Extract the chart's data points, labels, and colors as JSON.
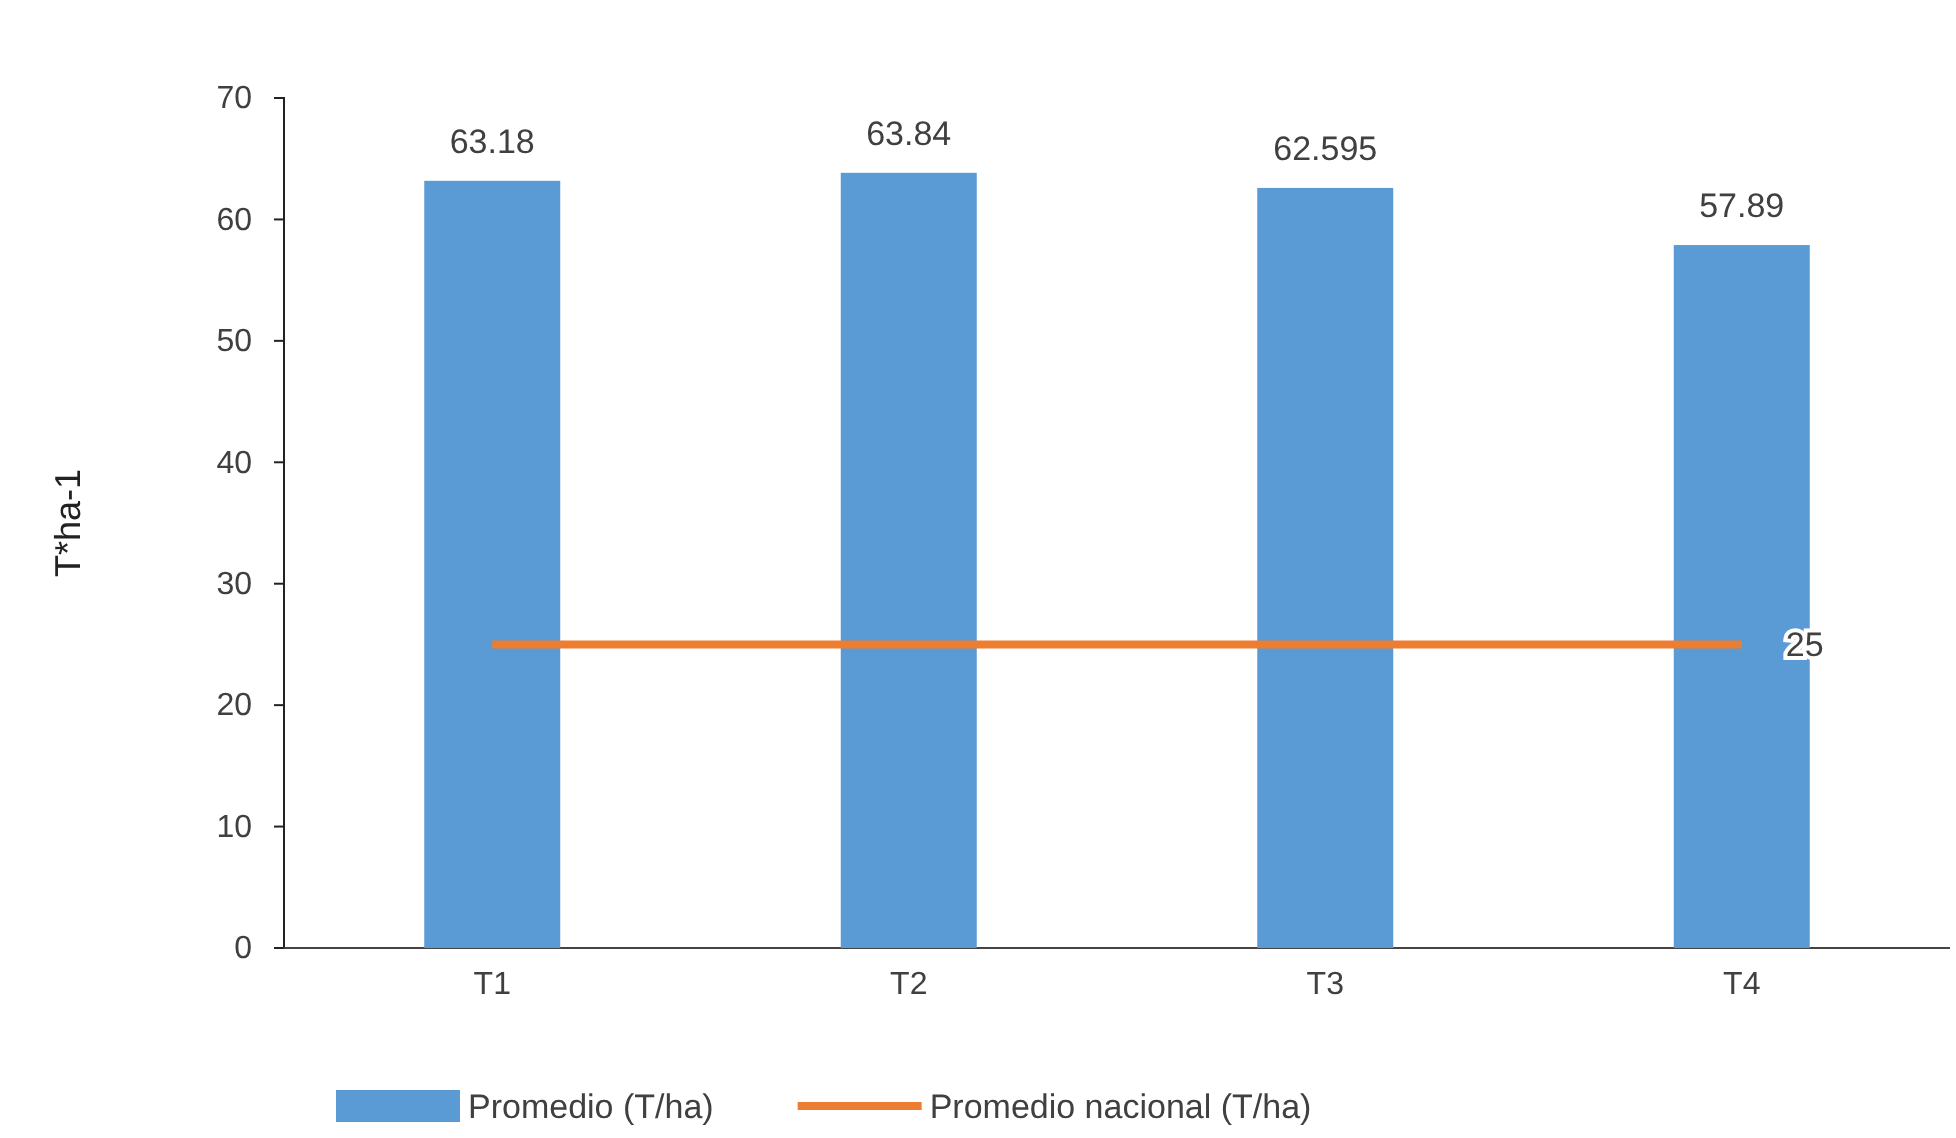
{
  "chart_data": {
    "type": "bar",
    "ylabel": "T*ha-1",
    "categories": [
      "T1",
      "T2",
      "T3",
      "T4"
    ],
    "series": [
      {
        "name": "Promedio (T/ha)",
        "color": "#5b9bd5",
        "values": [
          63.18,
          63.84,
          62.595,
          57.89
        ],
        "value_labels": [
          "63.18",
          "63.84",
          "62.595",
          "57.89"
        ]
      },
      {
        "name": "Promedio nacional (T/ha)",
        "type": "line",
        "color": "#ed7d31",
        "values": [
          25,
          25,
          25,
          25
        ],
        "value_labels": [
          null,
          null,
          null,
          "25"
        ]
      }
    ],
    "ylim": [
      0,
      70
    ],
    "yticks": [
      0,
      10,
      20,
      30,
      40,
      50,
      60,
      70
    ],
    "grid": false,
    "legend": "bottom",
    "marker": "none",
    "line_style": "solid"
  }
}
